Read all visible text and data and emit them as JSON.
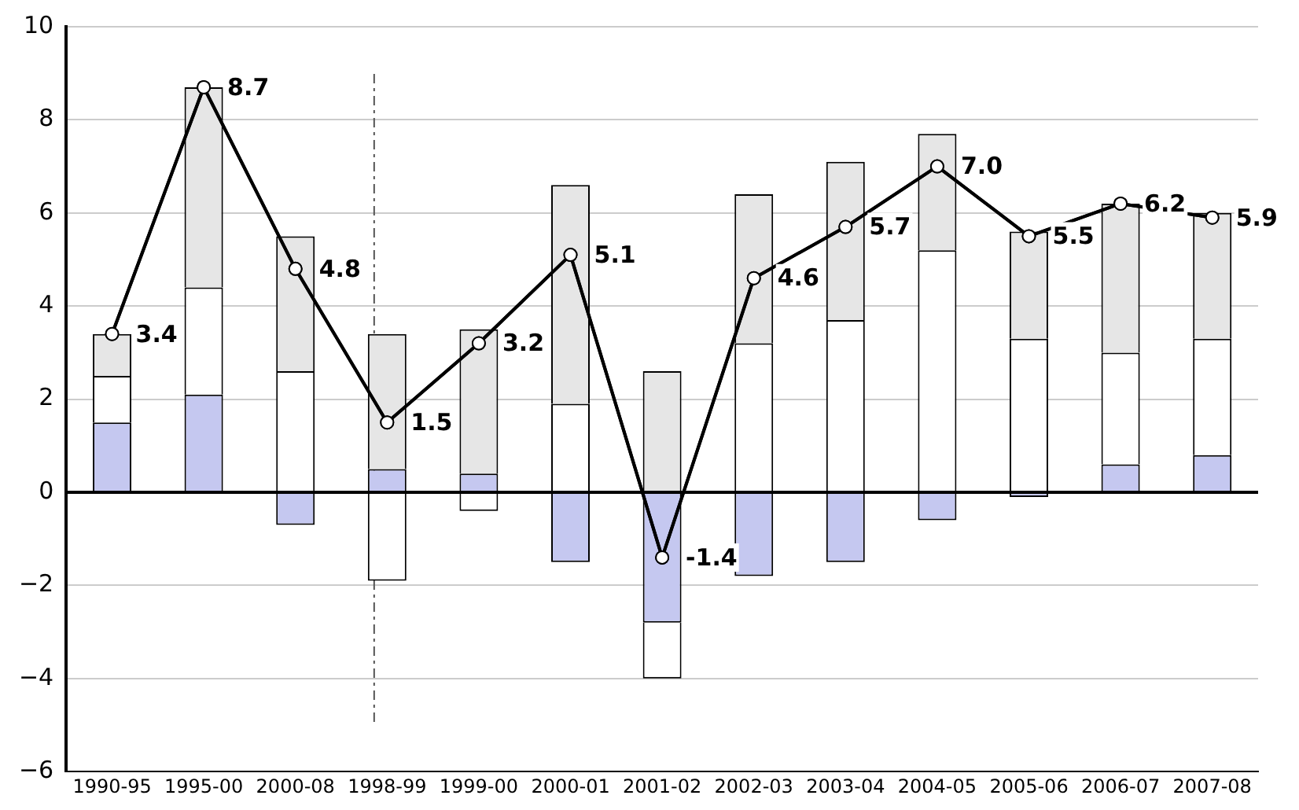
{
  "chart_data": {
    "type": "bar",
    "stacked": true,
    "categories": [
      "1990-95",
      "1995-00",
      "2000-08",
      "1998-99",
      "1999-00",
      "2000-01",
      "2001-02",
      "2002-03",
      "2003-04",
      "2004-05",
      "2005-06",
      "2006-07",
      "2007-08"
    ],
    "series": [
      {
        "color": "#c5c8f0",
        "values": [
          1.5,
          2.1,
          -0.7,
          0.5,
          0.4,
          -1.5,
          -2.8,
          -1.8,
          -1.5,
          -0.6,
          -0.1,
          0.6,
          0.8
        ]
      },
      {
        "color": "#ffffff",
        "values": [
          1.0,
          2.3,
          2.6,
          -1.9,
          -0.4,
          1.9,
          -1.2,
          3.2,
          3.7,
          5.2,
          3.3,
          2.4,
          2.5
        ]
      },
      {
        "color": "#e6e6e6",
        "values": [
          0.9,
          4.3,
          2.9,
          2.9,
          3.1,
          4.7,
          2.6,
          3.2,
          3.4,
          2.5,
          2.3,
          3.2,
          2.7
        ]
      },
      {
        "type": "line",
        "color": "#000000",
        "values": [
          3.4,
          8.7,
          4.8,
          1.5,
          3.2,
          5.1,
          -1.4,
          4.6,
          5.7,
          7.0,
          5.5,
          6.2,
          5.9
        ],
        "value_labels": [
          "3.4",
          "8.7",
          "4.8",
          "1.5",
          "3.2",
          "5.1",
          "-1.4",
          "4.6",
          "5.7",
          "7.0",
          "5.5",
          "6.2",
          "5.9"
        ]
      }
    ],
    "ylim": [
      -6,
      10
    ],
    "yticks": [
      -6,
      -4,
      -2,
      0,
      2,
      4,
      6,
      8,
      10
    ],
    "grid": "y",
    "marker": "circle",
    "line_style": "solid",
    "ref_lines": [
      {
        "axis": "x",
        "value": "1998-99",
        "line_style": "dashed",
        "color": "#555555"
      }
    ]
  }
}
